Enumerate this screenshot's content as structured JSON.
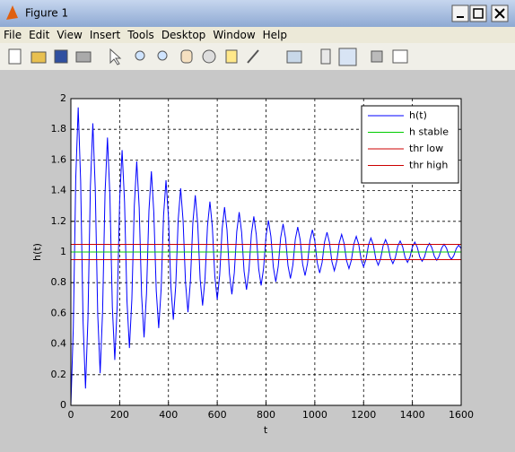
{
  "window": {
    "title": "Figure 1",
    "menu": [
      "File",
      "Edit",
      "View",
      "Insert",
      "Tools",
      "Desktop",
      "Window",
      "Help"
    ]
  },
  "chart_data": {
    "type": "line",
    "xlabel": "t",
    "ylabel": "h(t)",
    "xlim": [
      0,
      1600
    ],
    "ylim": [
      0,
      2
    ],
    "xticks": [
      0,
      200,
      400,
      600,
      800,
      1000,
      1200,
      1400,
      1600
    ],
    "yticks": [
      0,
      0.2,
      0.4,
      0.6,
      0.8,
      1,
      1.2,
      1.4,
      1.6,
      1.8,
      2
    ],
    "grid": true,
    "legend": "upper right",
    "series": [
      {
        "name": "h(t)",
        "color": "#0000ff",
        "x": [
          0,
          10,
          20,
          30,
          40,
          50,
          60,
          70,
          80,
          90,
          100,
          110,
          120,
          130,
          140,
          150,
          160,
          170,
          180,
          190,
          200,
          210,
          220,
          230,
          240,
          250,
          260,
          270,
          280,
          290,
          300,
          310,
          320,
          330,
          340,
          350,
          360,
          370,
          380,
          390,
          400,
          410,
          420,
          430,
          440,
          450,
          460,
          470,
          480,
          490,
          500,
          510,
          520,
          530,
          540,
          550,
          560,
          570,
          580,
          590,
          600,
          610,
          620,
          630,
          640,
          650,
          660,
          670,
          680,
          690,
          700,
          710,
          720,
          730,
          740,
          750,
          760,
          770,
          780,
          790,
          800,
          810,
          820,
          830,
          840,
          850,
          860,
          870,
          880,
          890,
          900,
          910,
          920,
          930,
          940,
          950,
          960,
          970,
          980,
          990,
          1000,
          1010,
          1020,
          1030,
          1040,
          1050,
          1060,
          1070,
          1080,
          1090,
          1100,
          1110,
          1120,
          1130,
          1140,
          1150,
          1160,
          1170,
          1180,
          1190,
          1200,
          1210,
          1220,
          1230,
          1240,
          1250,
          1260,
          1270,
          1280,
          1290,
          1300,
          1310,
          1320,
          1330,
          1340,
          1350,
          1360,
          1370,
          1380,
          1390,
          1400,
          1410,
          1420,
          1430,
          1440,
          1450,
          1460,
          1470,
          1480,
          1490,
          1500,
          1510,
          1520,
          1530,
          1540,
          1550,
          1560,
          1570,
          1580,
          1590,
          1600
        ],
        "values": [
          0,
          0.51,
          1.481,
          1.943,
          1.463,
          0.546,
          0.11,
          0.564,
          1.428,
          1.839,
          1.411,
          0.597,
          0.209,
          0.612,
          1.381,
          1.746,
          1.366,
          0.641,
          0.296,
          0.655,
          1.339,
          1.664,
          1.326,
          0.681,
          0.374,
          0.693,
          1.301,
          1.591,
          1.29,
          0.716,
          0.443,
          0.727,
          1.268,
          1.526,
          1.258,
          0.747,
          0.504,
          0.757,
          1.238,
          1.468,
          1.229,
          0.775,
          0.559,
          0.784,
          1.212,
          1.416,
          1.204,
          0.8,
          0.608,
          0.808,
          1.189,
          1.37,
          1.181,
          0.822,
          0.651,
          0.829,
          1.168,
          1.329,
          1.161,
          0.842,
          0.69,
          0.848,
          1.149,
          1.293,
          1.144,
          0.859,
          0.724,
          0.865,
          1.133,
          1.26,
          1.128,
          0.875,
          0.754,
          0.88,
          1.118,
          1.232,
          1.114,
          0.889,
          0.782,
          0.893,
          1.105,
          1.206,
          1.101,
          0.901,
          0.806,
          0.905,
          1.093,
          1.183,
          1.09,
          0.912,
          0.827,
          0.915,
          1.083,
          1.163,
          1.08,
          0.922,
          0.846,
          0.925,
          1.074,
          1.145,
          1.071,
          0.93,
          0.863,
          0.933,
          1.066,
          1.129,
          1.063,
          0.938,
          0.878,
          0.94,
          1.059,
          1.115,
          1.056,
          0.945,
          0.892,
          0.947,
          1.052,
          1.102,
          1.05,
          0.951,
          0.904,
          0.953,
          1.046,
          1.091,
          1.045,
          0.956,
          0.914,
          0.958,
          1.041,
          1.081,
          1.04,
          0.961,
          0.924,
          0.963,
          1.037,
          1.072,
          1.035,
          0.965,
          0.932,
          0.967,
          1.033,
          1.064,
          1.031,
          0.969,
          0.94,
          0.97,
          1.029,
          1.057,
          1.028,
          0.973,
          0.946,
          0.974,
          1.026,
          1.051,
          1.025,
          0.976,
          0.952,
          0.977,
          1.023,
          1.045,
          1.022
        ]
      },
      {
        "name": "h stable",
        "color": "#00cc00",
        "x": [
          0,
          1600
        ],
        "values": [
          1,
          1
        ]
      },
      {
        "name": "thr low",
        "color": "#cc0000",
        "x": [
          0,
          1600
        ],
        "values": [
          0.95,
          0.95
        ]
      },
      {
        "name": "thr high",
        "color": "#cc0000",
        "x": [
          0,
          1600
        ],
        "values": [
          1.05,
          1.05
        ]
      }
    ]
  }
}
